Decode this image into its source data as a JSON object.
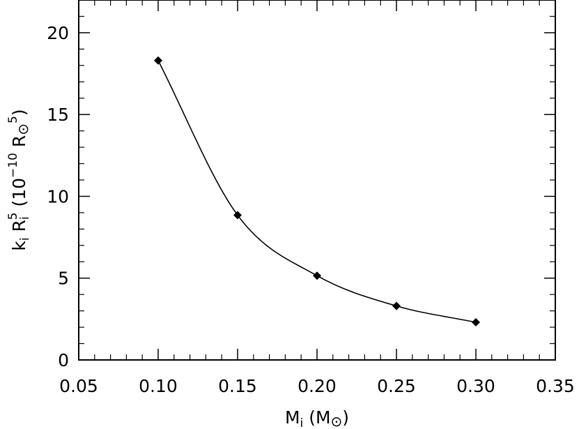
{
  "chart_data": {
    "type": "scatter",
    "title": "",
    "xlabel": {
      "base": "M",
      "sub": "i",
      "unit_open": " (M",
      "unit_symbol": "⊙",
      "unit_close": ")"
    },
    "ylabel": {
      "k": "k",
      "k_sub": "i",
      "r": " R",
      "r_sub": "i",
      "r_sup": "5",
      "unit_open": " (10",
      "unit_exp": "−10",
      "unit_r": " R",
      "unit_symbol": "⊙",
      "unit_sup": "5",
      "unit_close": ")"
    },
    "xlim": [
      0.05,
      0.35
    ],
    "ylim": [
      0,
      22
    ],
    "x_ticks": [
      0.05,
      0.1,
      0.15,
      0.2,
      0.25,
      0.3,
      0.35
    ],
    "x_tick_labels": [
      "0.05",
      "0.10",
      "0.15",
      "0.20",
      "0.25",
      "0.30",
      "0.35"
    ],
    "y_ticks": [
      0,
      5,
      10,
      15,
      20
    ],
    "y_tick_labels": [
      "0",
      "5",
      "10",
      "15",
      "20"
    ],
    "grid": false,
    "series": [
      {
        "x": [
          0.1,
          0.15,
          0.2,
          0.25,
          0.3
        ],
        "y": [
          18.3,
          8.85,
          5.15,
          3.3,
          2.3
        ],
        "marker": "diamond",
        "line": "smooth",
        "color": "#000000"
      }
    ]
  }
}
